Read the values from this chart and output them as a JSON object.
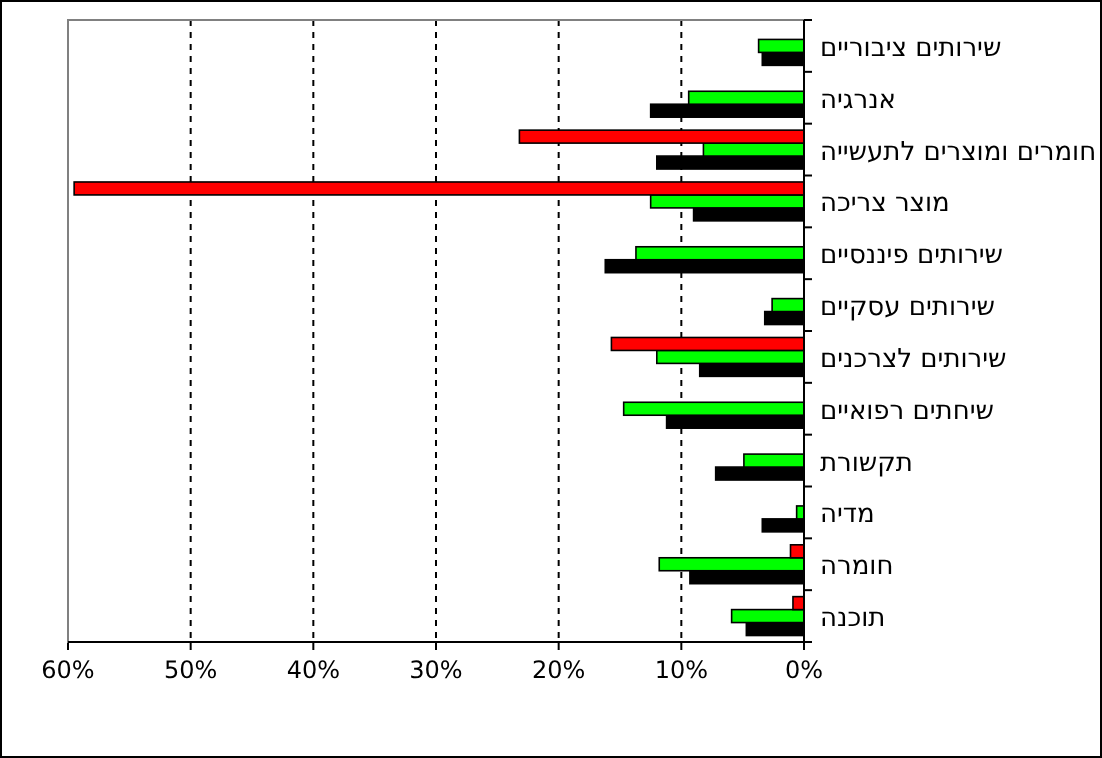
{
  "chart_data": {
    "type": "bar",
    "orientation": "horizontal",
    "categories": [
      "שירותים ציבוריים",
      "אנרגיה",
      "חומרים ומוצרים לתעשייה",
      "מוצר צריכה",
      "שירותים פיננסיים",
      "שירותים עסקיים",
      "שירותים לצרכנים",
      "שיחתים רפואיים",
      "תקשורת",
      "מדיה",
      "חומרה",
      "תוכנה"
    ],
    "series": [
      {
        "color": "#000000",
        "values": [
          3.4,
          12.5,
          12.0,
          9.0,
          16.2,
          3.2,
          8.5,
          11.2,
          7.2,
          3.4,
          9.3,
          4.7
        ]
      },
      {
        "color": "#00ff00",
        "values": [
          3.7,
          9.4,
          8.2,
          12.5,
          13.7,
          2.6,
          12.0,
          14.7,
          4.9,
          0.6,
          11.8,
          5.9
        ]
      },
      {
        "color": "#ff0000",
        "values": [
          null,
          null,
          23.2,
          59.5,
          null,
          null,
          15.7,
          null,
          null,
          null,
          1.1,
          0.9
        ]
      }
    ],
    "xlim": [
      60,
      0
    ],
    "xticks": [
      {
        "value": 60,
        "label": "60%"
      },
      {
        "value": 50,
        "label": "50%"
      },
      {
        "value": 40,
        "label": "40%"
      },
      {
        "value": 30,
        "label": "30%"
      },
      {
        "value": 20,
        "label": "20%"
      },
      {
        "value": 10,
        "label": "10%"
      },
      {
        "value": 0,
        "label": "0%"
      }
    ],
    "grid": "x"
  }
}
